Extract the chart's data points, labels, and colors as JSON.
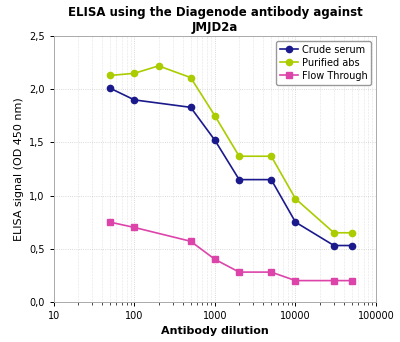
{
  "title": "ELISA using the Diagenode antibody against\nJMJD2a",
  "xlabel": "Antibody dilution",
  "ylabel": "ELISA signal (OD 450 nm)",
  "xlim_log": [
    10,
    100000
  ],
  "ylim": [
    0.0,
    2.5
  ],
  "yticks": [
    0.0,
    0.5,
    1.0,
    1.5,
    2.0,
    2.5
  ],
  "ytick_labels": [
    "0,0",
    "0,5",
    "1,0",
    "1,5",
    "2,0",
    "2,5"
  ],
  "xtick_vals": [
    10,
    100,
    1000,
    10000,
    100000
  ],
  "xtick_labels": [
    "10",
    "100",
    "1000",
    "10000",
    "100000"
  ],
  "crude_serum": {
    "x": [
      50,
      100,
      500,
      1000,
      2000,
      5000,
      10000,
      30000,
      50000
    ],
    "y": [
      2.01,
      1.9,
      1.83,
      1.52,
      1.15,
      1.15,
      0.75,
      0.53,
      0.53
    ],
    "color": "#1a1a8c",
    "marker": "o",
    "label": "Crude serum",
    "linewidth": 1.2,
    "markersize": 4.5
  },
  "purified_abs": {
    "x": [
      50,
      100,
      200,
      500,
      1000,
      2000,
      5000,
      10000,
      30000,
      50000
    ],
    "y": [
      2.13,
      2.15,
      2.22,
      2.11,
      1.75,
      1.37,
      1.37,
      0.97,
      0.65,
      0.65
    ],
    "color": "#aacc00",
    "marker": "o",
    "label": "Purified abs",
    "linewidth": 1.2,
    "markersize": 4.5
  },
  "flow_through": {
    "x": [
      50,
      100,
      500,
      1000,
      2000,
      5000,
      10000,
      30000,
      50000
    ],
    "y": [
      0.75,
      0.7,
      0.57,
      0.4,
      0.28,
      0.28,
      0.2,
      0.2,
      0.2
    ],
    "color": "#dd44aa",
    "marker": "s",
    "label": "Flow Through",
    "linewidth": 1.2,
    "markersize": 4.5
  },
  "background_color": "#ffffff",
  "grid_color": "#cccccc",
  "title_fontsize": 8.5,
  "axis_label_fontsize": 8,
  "tick_fontsize": 7,
  "legend_fontsize": 7
}
